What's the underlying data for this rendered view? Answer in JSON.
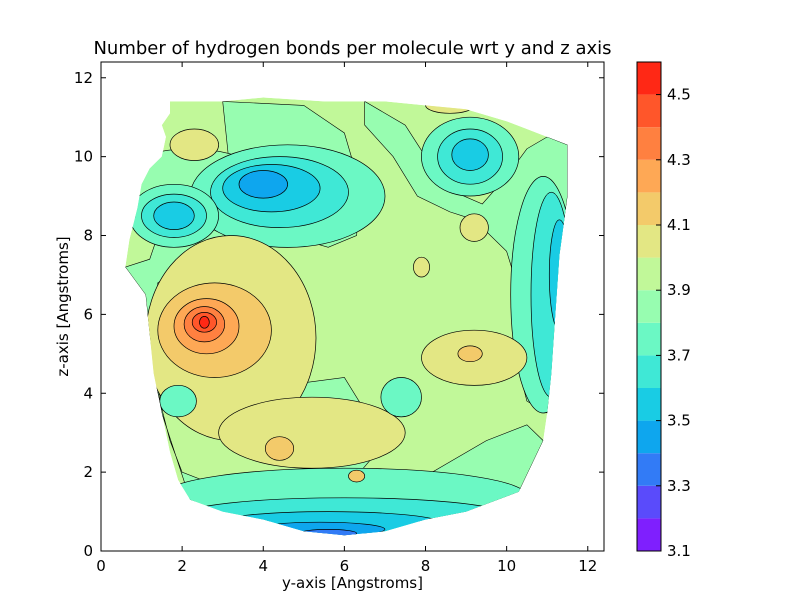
{
  "chart_data": {
    "type": "contour",
    "title": "Number of hydrogen bonds per molecule wrt y and z axis",
    "xlabel": "y-axis [Angstroms]",
    "ylabel": "z-axis [Angstroms]",
    "xlim": [
      0,
      12.4
    ],
    "ylim": [
      0,
      12.4
    ],
    "x_ticks": [
      0,
      2,
      4,
      6,
      8,
      10,
      12
    ],
    "y_ticks": [
      0,
      2,
      4,
      6,
      8,
      10,
      12
    ],
    "grid": false,
    "colorbar": {
      "range": [
        3.1,
        4.6
      ],
      "levels": [
        3.1,
        3.2,
        3.3,
        3.4,
        3.5,
        3.6,
        3.7,
        3.8,
        3.9,
        4.0,
        4.1,
        4.2,
        4.3,
        4.4,
        4.5,
        4.6
      ],
      "tick_labels": [
        "3.1",
        "3.3",
        "3.5",
        "3.7",
        "3.9",
        "4.1",
        "4.3",
        "4.5"
      ],
      "tick_values": [
        3.1,
        3.3,
        3.5,
        3.7,
        3.9,
        4.1,
        4.3,
        4.5
      ],
      "colors": [
        "#7f1ffe",
        "#5a4bfb",
        "#327bf6",
        "#0ea6ee",
        "#19cce4",
        "#3fe8d6",
        "#6bf8c4",
        "#97fdb0",
        "#c1f899",
        "#e3e784",
        "#f3ca6a",
        "#fea855",
        "#ff8040",
        "#ff562a",
        "#ff2815"
      ]
    },
    "domain_outline_yz": [
      [
        0.6,
        7.2
      ],
      [
        0.7,
        7.9
      ],
      [
        0.8,
        8.3
      ],
      [
        0.9,
        8.7
      ],
      [
        1.0,
        9.3
      ],
      [
        1.2,
        9.7
      ],
      [
        1.5,
        10.0
      ],
      [
        1.6,
        10.5
      ],
      [
        1.5,
        10.8
      ],
      [
        1.7,
        11.1
      ],
      [
        1.7,
        11.4
      ],
      [
        3.0,
        11.4
      ],
      [
        4.0,
        11.5
      ],
      [
        5.5,
        11.4
      ],
      [
        7.0,
        11.4
      ],
      [
        8.0,
        11.3
      ],
      [
        9.0,
        11.2
      ],
      [
        10.0,
        10.9
      ],
      [
        10.5,
        10.7
      ],
      [
        11.0,
        10.5
      ],
      [
        11.5,
        10.3
      ],
      [
        11.5,
        9.0
      ],
      [
        11.3,
        7.5
      ],
      [
        11.2,
        6.0
      ],
      [
        11.1,
        4.5
      ],
      [
        11.0,
        3.5
      ],
      [
        10.9,
        2.8
      ],
      [
        10.3,
        1.5
      ],
      [
        9.0,
        1.0
      ],
      [
        8.0,
        0.8
      ],
      [
        7.0,
        0.5
      ],
      [
        6.0,
        0.4
      ],
      [
        5.0,
        0.5
      ],
      [
        4.0,
        0.8
      ],
      [
        3.0,
        1.0
      ],
      [
        2.2,
        1.3
      ],
      [
        1.9,
        1.8
      ],
      [
        1.7,
        2.5
      ],
      [
        1.5,
        3.5
      ],
      [
        1.3,
        4.5
      ],
      [
        1.2,
        5.5
      ],
      [
        1.1,
        6.5
      ],
      [
        0.6,
        7.2
      ]
    ],
    "regions": [
      {
        "level": 3.95,
        "center": [
          7.5,
          7.5
        ],
        "rx": 0,
        "ry": 0
      },
      {
        "level": 3.85,
        "center": [
          2.2,
          9.2
        ],
        "rx": 2.0,
        "ry": 1.0
      },
      {
        "level": 3.75,
        "center": [
          4.6,
          9.0
        ],
        "rx": 2.4,
        "ry": 1.3
      },
      {
        "level": 3.65,
        "center": [
          4.4,
          9.1
        ],
        "rx": 1.7,
        "ry": 0.9
      },
      {
        "level": 3.55,
        "center": [
          4.2,
          9.2
        ],
        "rx": 1.2,
        "ry": 0.6
      },
      {
        "level": 3.45,
        "center": [
          4.0,
          9.3
        ],
        "rx": 0.6,
        "ry": 0.35
      },
      {
        "level": 3.75,
        "center": [
          1.8,
          8.5
        ],
        "rx": 1.1,
        "ry": 0.8
      },
      {
        "level": 3.65,
        "center": [
          1.8,
          8.5
        ],
        "rx": 0.8,
        "ry": 0.55
      },
      {
        "level": 3.55,
        "center": [
          1.8,
          8.5
        ],
        "rx": 0.5,
        "ry": 0.35
      },
      {
        "level": 3.75,
        "center": [
          9.1,
          10.0
        ],
        "rx": 1.2,
        "ry": 1.0
      },
      {
        "level": 3.65,
        "center": [
          9.1,
          10.0
        ],
        "rx": 0.8,
        "ry": 0.7
      },
      {
        "level": 3.55,
        "center": [
          9.1,
          10.05
        ],
        "rx": 0.45,
        "ry": 0.4
      },
      {
        "level": 3.75,
        "center": [
          10.9,
          6.5
        ],
        "rx": 0.8,
        "ry": 3.0
      },
      {
        "level": 3.65,
        "center": [
          11.1,
          6.5
        ],
        "rx": 0.5,
        "ry": 2.6
      },
      {
        "level": 3.55,
        "center": [
          11.3,
          7.0
        ],
        "rx": 0.25,
        "ry": 1.4
      },
      {
        "level": 3.75,
        "center": [
          6.0,
          1.4
        ],
        "rx": 4.5,
        "ry": 0.7
      },
      {
        "level": 3.65,
        "center": [
          6.0,
          0.9
        ],
        "rx": 4.0,
        "ry": 0.45
      },
      {
        "level": 3.55,
        "center": [
          5.6,
          0.7
        ],
        "rx": 2.8,
        "ry": 0.3
      },
      {
        "level": 3.45,
        "center": [
          5.4,
          0.55
        ],
        "rx": 1.6,
        "ry": 0.18
      },
      {
        "level": 3.35,
        "center": [
          5.6,
          0.45
        ],
        "rx": 0.7,
        "ry": 0.1
      },
      {
        "level": 4.05,
        "center": [
          3.2,
          5.4
        ],
        "rx": 2.1,
        "ry": 2.6
      },
      {
        "level": 4.15,
        "center": [
          2.8,
          5.6
        ],
        "rx": 1.4,
        "ry": 1.2
      },
      {
        "level": 4.25,
        "center": [
          2.6,
          5.7
        ],
        "rx": 0.8,
        "ry": 0.7
      },
      {
        "level": 4.35,
        "center": [
          2.55,
          5.75
        ],
        "rx": 0.5,
        "ry": 0.45
      },
      {
        "level": 4.45,
        "center": [
          2.55,
          5.8
        ],
        "rx": 0.3,
        "ry": 0.25
      },
      {
        "level": 4.55,
        "center": [
          2.55,
          5.8
        ],
        "rx": 0.12,
        "ry": 0.15
      },
      {
        "level": 4.05,
        "center": [
          5.2,
          3.0
        ],
        "rx": 2.3,
        "ry": 0.9
      },
      {
        "level": 4.15,
        "center": [
          4.4,
          2.6
        ],
        "rx": 0.35,
        "ry": 0.3
      },
      {
        "level": 4.15,
        "center": [
          6.3,
          1.9
        ],
        "rx": 0.2,
        "ry": 0.15
      },
      {
        "level": 4.05,
        "center": [
          9.2,
          4.9
        ],
        "rx": 1.3,
        "ry": 0.7
      },
      {
        "level": 4.15,
        "center": [
          9.1,
          5.0
        ],
        "rx": 0.3,
        "ry": 0.2
      },
      {
        "level": 4.05,
        "center": [
          2.3,
          10.3
        ],
        "rx": 0.6,
        "ry": 0.4
      },
      {
        "level": 4.05,
        "center": [
          9.2,
          8.2
        ],
        "rx": 0.35,
        "ry": 0.35
      },
      {
        "level": 4.05,
        "center": [
          7.9,
          7.2
        ],
        "rx": 0.2,
        "ry": 0.25
      },
      {
        "level": 4.05,
        "center": [
          8.6,
          11.3
        ],
        "rx": 0.6,
        "ry": 0.2
      },
      {
        "level": 3.75,
        "center": [
          1.9,
          3.8
        ],
        "rx": 0.45,
        "ry": 0.4
      },
      {
        "level": 3.75,
        "center": [
          7.4,
          3.9
        ],
        "rx": 0.5,
        "ry": 0.5
      }
    ]
  }
}
